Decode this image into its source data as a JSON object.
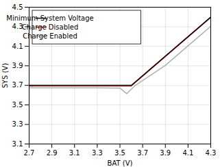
{
  "chart_data": {
    "type": "line",
    "xlabel": "BAT (V)",
    "ylabel": "SYS (V)",
    "xlim": [
      2.7,
      4.3
    ],
    "ylim": [
      3.1,
      4.5
    ],
    "xticks": [
      2.7,
      2.9,
      3.1,
      3.3,
      3.5,
      3.7,
      3.9,
      4.1,
      4.3
    ],
    "yticks": [
      3.1,
      3.3,
      3.5,
      3.7,
      3.9,
      4.1,
      4.3,
      4.5
    ],
    "grid": true,
    "legend": "upper left",
    "series": [
      {
        "name": "Minimum System Voltage",
        "color": "#000000",
        "x": [
          2.7,
          3.6,
          4.3
        ],
        "values": [
          3.7,
          3.7,
          4.4
        ]
      },
      {
        "name": "Charge Disabled",
        "color": "#cc0000",
        "x": [
          2.7,
          3.6,
          4.3
        ],
        "values": [
          3.695,
          3.695,
          4.395
        ]
      },
      {
        "name": "Charge Enabled",
        "color": "#b0b0b0",
        "x": [
          2.7,
          3.3,
          3.5,
          3.56,
          3.63,
          3.9,
          4.1,
          4.3
        ],
        "values": [
          3.675,
          3.675,
          3.672,
          3.615,
          3.695,
          3.905,
          4.105,
          4.305
        ]
      }
    ]
  }
}
